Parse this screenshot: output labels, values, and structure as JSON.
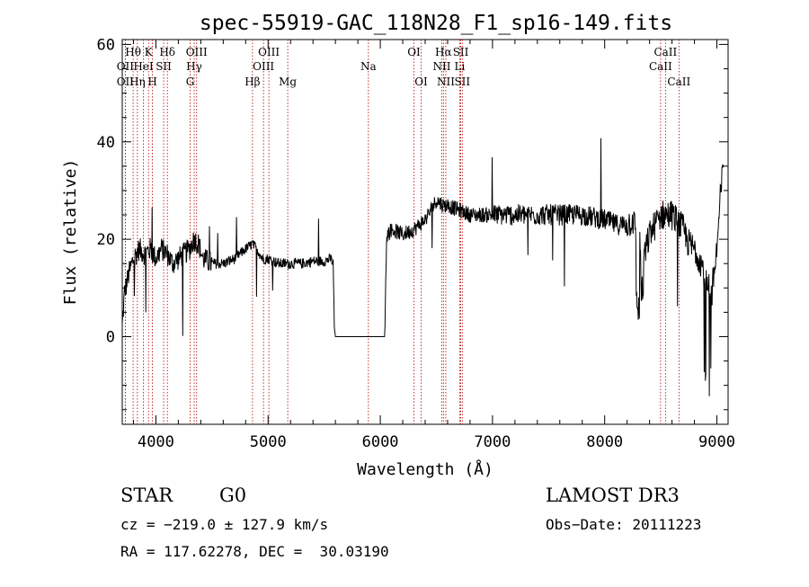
{
  "chart_data": {
    "type": "line",
    "title": "spec-55919-GAC_118N28_F1_sp16-149.fits",
    "xlabel": "Wavelength (Å)",
    "ylabel": "Flux (relative)",
    "xlim": [
      3700,
      9100
    ],
    "ylim": [
      -18,
      61
    ],
    "x_ticks": [
      4000,
      5000,
      6000,
      7000,
      8000,
      9000
    ],
    "y_ticks": [
      0,
      20,
      40,
      60
    ],
    "grid": false,
    "line_color": "#000000",
    "marker_color": "#b00000",
    "spectrum_anchors": {
      "x": [
        3700,
        3720,
        3760,
        3800,
        3850,
        3900,
        3950,
        4000,
        4050,
        4100,
        4150,
        4200,
        4250,
        4300,
        4340,
        4380,
        4420,
        4500,
        4600,
        4700,
        4800,
        4860,
        4900,
        4950,
        5000,
        5100,
        5200,
        5300,
        5400,
        5500,
        5560,
        5580,
        5590,
        5600,
        6000,
        6040,
        6050,
        6060,
        6100,
        6200,
        6300,
        6400,
        6450,
        6500,
        6560,
        6600,
        6700,
        6800,
        7000,
        7200,
        7400,
        7600,
        7800,
        8000,
        8100,
        8200,
        8250,
        8300,
        8350,
        8400,
        8500,
        8600,
        8700,
        8750,
        8800,
        8850,
        8900,
        8950,
        9000,
        9030,
        9060
      ],
      "y": [
        2,
        9,
        13,
        16,
        18,
        17,
        18,
        16,
        18,
        17,
        15,
        16,
        17,
        18,
        20,
        19,
        16,
        15,
        15,
        16,
        18,
        19,
        18,
        16,
        16,
        15,
        15,
        15,
        15.5,
        15.5,
        16,
        15,
        2,
        0,
        0,
        0,
        15,
        21,
        22,
        21,
        22,
        24,
        26,
        28,
        27,
        27,
        26,
        25,
        25,
        25,
        25,
        25,
        25,
        24,
        23,
        23,
        24,
        20,
        16,
        21,
        25,
        25,
        22,
        19,
        18,
        16,
        12,
        8,
        18,
        28,
        36
      ]
    },
    "line_markers": [
      {
        "name": "Hθ",
        "x": 3797,
        "row": 1
      },
      {
        "name": "OII",
        "x": 3727,
        "row": 2
      },
      {
        "name": "OII",
        "x": 3727,
        "row": 3
      },
      {
        "name": "Hη",
        "x": 3835,
        "row": 3
      },
      {
        "name": "K",
        "x": 3934,
        "row": 1
      },
      {
        "name": "HeI",
        "x": 3889,
        "row": 2
      },
      {
        "name": "H",
        "x": 3969,
        "row": 3
      },
      {
        "name": "Hδ",
        "x": 4102,
        "row": 1
      },
      {
        "name": "SII",
        "x": 4069,
        "row": 2
      },
      {
        "name": "OIII",
        "x": 4363,
        "row": 1
      },
      {
        "name": "Hγ",
        "x": 4341,
        "row": 2
      },
      {
        "name": "G",
        "x": 4305,
        "row": 3
      },
      {
        "name": "OIII",
        "x": 5007,
        "row": 1
      },
      {
        "name": "OIII",
        "x": 4959,
        "row": 2
      },
      {
        "name": "Hβ",
        "x": 4861,
        "row": 3
      },
      {
        "name": "Mg",
        "x": 5175,
        "row": 3
      },
      {
        "name": "Na",
        "x": 5894,
        "row": 2
      },
      {
        "name": "OI",
        "x": 6300,
        "row": 1
      },
      {
        "name": "OI",
        "x": 6364,
        "row": 3
      },
      {
        "name": "Hα",
        "x": 6563,
        "row": 1
      },
      {
        "name": "SII",
        "x": 6717,
        "row": 1
      },
      {
        "name": "NII",
        "x": 6548,
        "row": 2
      },
      {
        "name": "Li",
        "x": 6708,
        "row": 2
      },
      {
        "name": "NII",
        "x": 6584,
        "row": 3
      },
      {
        "name": "SII",
        "x": 6731,
        "row": 3
      },
      {
        "name": "CaII",
        "x": 8542,
        "row": 1
      },
      {
        "name": "CaII",
        "x": 8498,
        "row": 2
      },
      {
        "name": "CaII",
        "x": 8662,
        "row": 3
      }
    ]
  },
  "info": {
    "class": "STAR",
    "subclass": "G0",
    "survey": "LAMOST DR3",
    "cz": "cz = −219.0 ± 127.9 km/s",
    "obs_date": "Obs−Date: 20111223",
    "coords": "RA = 117.62278, DEC =  30.03190"
  }
}
